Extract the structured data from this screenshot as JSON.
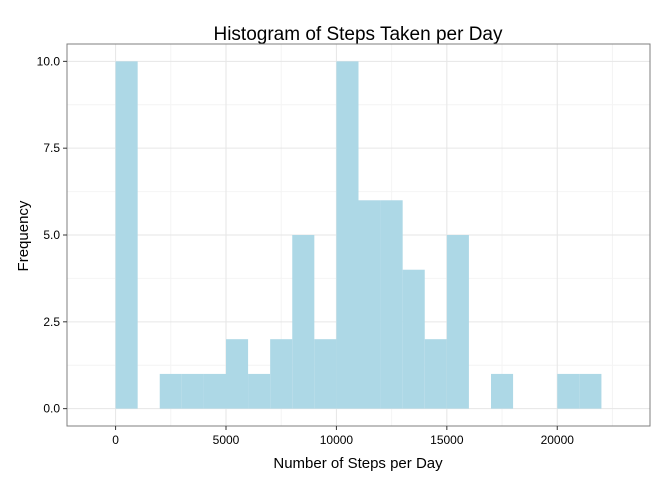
{
  "chart_data": {
    "type": "bar",
    "title": "Histogram of Steps Taken per Day",
    "xlabel": "Number of Steps per Day",
    "ylabel": "Frequency",
    "bin_width": 1000,
    "bins": [
      {
        "start": 0,
        "end": 1000,
        "count": 10
      },
      {
        "start": 1000,
        "end": 2000,
        "count": 0
      },
      {
        "start": 2000,
        "end": 3000,
        "count": 1
      },
      {
        "start": 3000,
        "end": 4000,
        "count": 1
      },
      {
        "start": 4000,
        "end": 5000,
        "count": 1
      },
      {
        "start": 5000,
        "end": 6000,
        "count": 2
      },
      {
        "start": 6000,
        "end": 7000,
        "count": 1
      },
      {
        "start": 7000,
        "end": 8000,
        "count": 2
      },
      {
        "start": 8000,
        "end": 9000,
        "count": 5
      },
      {
        "start": 9000,
        "end": 10000,
        "count": 2
      },
      {
        "start": 10000,
        "end": 11000,
        "count": 10
      },
      {
        "start": 11000,
        "end": 12000,
        "count": 6
      },
      {
        "start": 12000,
        "end": 13000,
        "count": 6
      },
      {
        "start": 13000,
        "end": 14000,
        "count": 4
      },
      {
        "start": 14000,
        "end": 15000,
        "count": 2
      },
      {
        "start": 15000,
        "end": 16000,
        "count": 5
      },
      {
        "start": 16000,
        "end": 17000,
        "count": 0
      },
      {
        "start": 17000,
        "end": 18000,
        "count": 1
      },
      {
        "start": 18000,
        "end": 19000,
        "count": 0
      },
      {
        "start": 19000,
        "end": 20000,
        "count": 0
      },
      {
        "start": 20000,
        "end": 21000,
        "count": 1
      },
      {
        "start": 21000,
        "end": 22000,
        "count": 1
      }
    ],
    "xlim": [
      -2200,
      24200
    ],
    "ylim": [
      -0.5,
      10.5
    ],
    "x_ticks": [
      0,
      5000,
      10000,
      15000,
      20000
    ],
    "x_tick_labels": [
      "0",
      "5000",
      "10000",
      "15000",
      "20000"
    ],
    "y_ticks": [
      0,
      2.5,
      5,
      7.5,
      10
    ],
    "y_tick_labels": [
      "0.0",
      "2.5",
      "5.0",
      "7.5",
      "10.0"
    ],
    "grid": true,
    "legend": "none",
    "colors": {
      "bar_fill": "#add8e6",
      "panel_border": "#7f7f7f",
      "grid_major": "#e6e6e6",
      "grid_minor": "#f4f4f4",
      "tick": "#333333"
    }
  }
}
